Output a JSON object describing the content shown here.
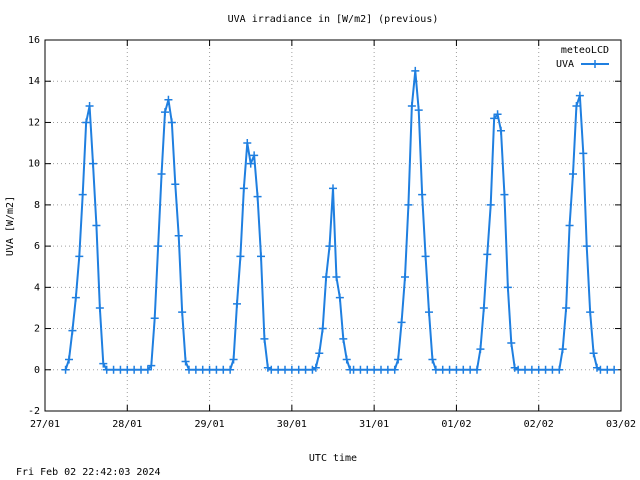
{
  "chart_data": {
    "type": "line",
    "title": "UVA irradiance in [W/m2] (previous)",
    "xlabel": "UTC time",
    "ylabel": "UVA [W/m2]",
    "legend_title": "meteoLCD",
    "legend": "top-right",
    "footer": "Fri Feb 02 22:42:03 2024",
    "grid": true,
    "x": [
      6,
      7,
      8,
      9,
      10,
      11,
      12,
      13,
      14,
      15,
      16,
      17,
      18,
      20,
      22,
      24,
      26,
      28,
      30,
      31,
      32,
      33,
      34,
      35,
      36,
      37,
      38,
      39,
      40,
      41,
      42,
      44,
      46,
      48,
      50,
      52,
      54,
      55,
      56,
      57,
      58,
      59,
      60,
      61,
      62,
      63,
      64,
      65,
      66,
      68,
      70,
      72,
      74,
      76,
      78,
      79,
      80,
      81,
      82,
      83,
      84,
      85,
      86,
      87,
      88,
      89,
      90,
      92,
      94,
      96,
      98,
      100,
      102,
      103,
      104,
      105,
      106,
      107,
      108,
      109,
      110,
      111,
      112,
      113,
      114,
      116,
      118,
      120,
      122,
      124,
      126,
      127,
      128,
      129,
      130,
      131,
      132,
      133,
      134,
      135,
      136,
      137,
      138,
      140,
      142,
      144,
      146,
      148,
      150,
      151,
      152,
      153,
      154,
      155,
      156,
      157,
      158,
      159,
      160,
      161,
      162,
      164,
      166
    ],
    "series": [
      {
        "name": "UVA",
        "color": "#1f7fe0",
        "values": [
          0,
          0.5,
          1.9,
          3.5,
          5.5,
          8.5,
          12,
          12.8,
          10,
          7,
          3,
          0.3,
          0,
          0,
          0,
          0,
          0,
          0,
          0,
          0.2,
          2.5,
          6,
          9.5,
          12.5,
          13.1,
          12,
          9,
          6.5,
          2.8,
          0.4,
          0,
          0,
          0,
          0,
          0,
          0,
          0,
          0.5,
          3.2,
          5.5,
          8.8,
          11,
          10,
          10.4,
          8.4,
          5.5,
          1.5,
          0.1,
          0,
          0,
          0,
          0,
          0,
          0,
          0,
          0.1,
          0.8,
          2,
          4.5,
          6,
          8.8,
          4.5,
          3.5,
          1.5,
          0.5,
          0,
          0,
          0,
          0,
          0,
          0,
          0,
          0,
          0.5,
          2.3,
          4.5,
          8,
          12.8,
          14.5,
          12.6,
          8.5,
          5.5,
          2.8,
          0.5,
          0,
          0,
          0,
          0,
          0,
          0,
          0,
          1,
          3,
          5.6,
          8,
          12.2,
          12.4,
          11.6,
          8.5,
          4,
          1.3,
          0.1,
          0,
          0,
          0,
          0,
          0,
          0,
          0,
          1,
          3,
          7,
          9.5,
          12.8,
          13.3,
          10.5,
          6,
          2.8,
          0.8,
          0.1,
          0,
          0,
          0
        ]
      }
    ],
    "xlim": [
      0,
      168
    ],
    "xticks": [
      {
        "value": 0,
        "label": "27/01"
      },
      {
        "value": 24,
        "label": "28/01"
      },
      {
        "value": 48,
        "label": "29/01"
      },
      {
        "value": 72,
        "label": "30/01"
      },
      {
        "value": 96,
        "label": "31/01"
      },
      {
        "value": 120,
        "label": "01/02"
      },
      {
        "value": 144,
        "label": "02/02"
      },
      {
        "value": 168,
        "label": "03/02"
      }
    ],
    "ylim": [
      -2,
      16
    ],
    "yticks": [
      -2,
      0,
      2,
      4,
      6,
      8,
      10,
      12,
      14,
      16
    ]
  }
}
